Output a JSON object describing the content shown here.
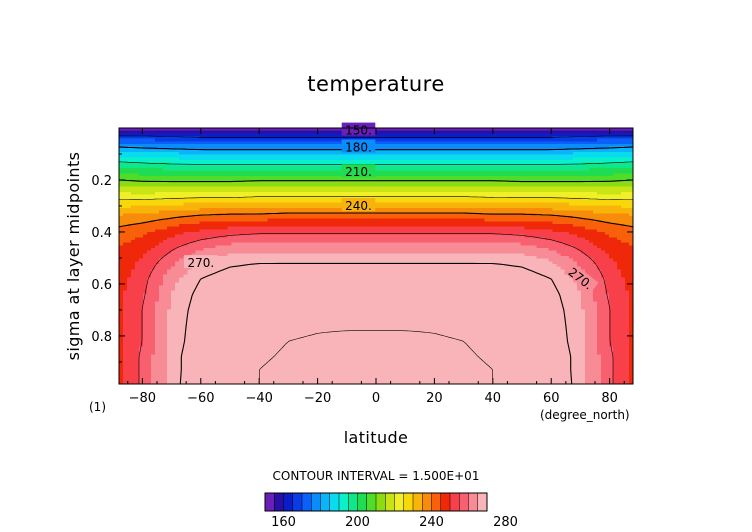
{
  "chart_data": {
    "type": "heatmap",
    "title": "temperature",
    "xlabel": "latitude",
    "ylabel": "sigma at layer midpoints",
    "x_units": "(degree_north)",
    "panel_label": "(1)",
    "xlim": [
      -88,
      88
    ],
    "ylim": [
      0,
      0.985
    ],
    "y_reversed": true,
    "x_ticks": [
      -80,
      -60,
      -40,
      -20,
      0,
      20,
      40,
      60,
      80
    ],
    "x_tick_labels": [
      "−80",
      "−60",
      "−40",
      "−20",
      "0",
      "20",
      "40",
      "60",
      "80"
    ],
    "y_ticks": [
      0.2,
      0.4,
      0.6,
      0.8
    ],
    "y_tick_labels": [
      "0.2",
      "0.4",
      "0.6",
      "0.8"
    ],
    "contour_interval_text": "CONTOUR INTERVAL = 1.500E+01",
    "contour_labels": [
      "150.",
      "180.",
      "210.",
      "240.",
      "270.",
      "270."
    ],
    "colorbar": {
      "min": 150,
      "max": 290,
      "step": 5,
      "tick_values": [
        160,
        200,
        240,
        280
      ],
      "tick_labels": [
        "160",
        "200",
        "240",
        "280"
      ],
      "colors": [
        "#6a1fb8",
        "#2a0fa6",
        "#0a1ec8",
        "#0a3ce6",
        "#0a60f8",
        "#0a8cfa",
        "#0ab4fa",
        "#0adcf0",
        "#0af0c8",
        "#10e68c",
        "#20dc50",
        "#50dc28",
        "#8cdc14",
        "#c8e414",
        "#f0f028",
        "#f8d80a",
        "#f8b40a",
        "#f88c0a",
        "#f8600a",
        "#f0280a",
        "#f8404a",
        "#f86070",
        "#f88c96",
        "#f8b4b8"
      ]
    },
    "sigma_levels": [
      0.0,
      0.015,
      0.03,
      0.06,
      0.1,
      0.16,
      0.22,
      0.28,
      0.34,
      0.4,
      0.46,
      0.52,
      0.58,
      0.64,
      0.7,
      0.76,
      0.82,
      0.88,
      0.93,
      0.985
    ],
    "latitudes": [
      -88,
      -80,
      -70,
      -60,
      -50,
      -40,
      -30,
      -20,
      -10,
      0,
      10,
      20,
      30,
      40,
      50,
      60,
      70,
      80,
      88
    ],
    "temperature": [
      [
        150,
        150,
        150,
        150,
        150,
        150,
        150,
        150,
        150,
        150,
        150,
        150,
        150,
        150,
        150,
        150,
        150,
        150,
        150
      ],
      [
        158,
        158,
        157,
        157,
        157,
        157,
        157,
        157,
        157,
        157,
        157,
        157,
        157,
        157,
        157,
        157,
        157,
        158,
        158
      ],
      [
        165,
        165,
        164,
        163,
        163,
        163,
        163,
        163,
        163,
        163,
        163,
        163,
        163,
        163,
        163,
        163,
        164,
        165,
        165
      ],
      [
        176,
        175,
        174,
        173,
        173,
        173,
        173,
        173,
        173,
        173,
        173,
        173,
        173,
        173,
        173,
        173,
        174,
        175,
        176
      ],
      [
        188,
        187,
        186,
        185,
        185,
        185,
        185,
        185,
        185,
        185,
        185,
        185,
        185,
        185,
        185,
        185,
        186,
        187,
        188
      ],
      [
        202,
        201,
        200,
        200,
        200,
        200,
        200,
        200,
        200,
        200,
        200,
        200,
        200,
        200,
        200,
        200,
        200,
        201,
        202
      ],
      [
        214,
        213,
        213,
        213,
        213,
        214,
        214,
        214,
        214,
        214,
        214,
        214,
        214,
        214,
        213,
        213,
        213,
        213,
        214
      ],
      [
        226,
        226,
        227,
        228,
        228,
        229,
        229,
        229,
        229,
        229,
        229,
        229,
        229,
        228,
        228,
        228,
        227,
        226,
        226
      ],
      [
        236,
        237,
        239,
        241,
        242,
        242,
        243,
        243,
        243,
        243,
        243,
        243,
        243,
        242,
        242,
        241,
        239,
        237,
        236
      ],
      [
        242,
        244,
        248,
        251,
        253,
        254,
        254,
        254,
        254,
        254,
        254,
        254,
        254,
        254,
        253,
        251,
        248,
        244,
        242
      ],
      [
        245,
        248,
        254,
        259,
        262,
        263,
        263,
        263,
        263,
        263,
        263,
        263,
        263,
        263,
        262,
        259,
        254,
        248,
        245
      ],
      [
        247,
        251,
        259,
        266,
        269,
        270,
        270,
        270,
        270,
        270,
        270,
        270,
        270,
        270,
        269,
        266,
        259,
        251,
        247
      ],
      [
        248,
        253,
        263,
        270,
        273,
        274,
        275,
        275,
        275,
        275,
        275,
        275,
        275,
        274,
        273,
        270,
        263,
        253,
        248
      ],
      [
        249,
        254,
        265,
        272,
        276,
        278,
        279,
        279,
        279,
        279,
        279,
        279,
        279,
        278,
        276,
        272,
        265,
        254,
        249
      ],
      [
        249,
        255,
        266,
        273,
        278,
        280,
        281,
        282,
        282,
        282,
        282,
        282,
        281,
        280,
        278,
        273,
        266,
        255,
        249
      ],
      [
        249,
        255,
        266,
        274,
        279,
        282,
        283,
        284,
        284,
        284,
        284,
        284,
        283,
        282,
        279,
        274,
        266,
        255,
        249
      ],
      [
        249,
        255,
        266,
        275,
        280,
        283,
        285,
        286,
        287,
        287,
        287,
        286,
        285,
        283,
        280,
        275,
        266,
        255,
        249
      ],
      [
        249,
        256,
        267,
        276,
        281,
        284,
        286,
        288,
        289,
        289,
        289,
        288,
        286,
        284,
        281,
        276,
        267,
        256,
        249
      ],
      [
        249,
        256,
        267,
        276,
        282,
        285,
        287,
        289,
        290,
        291,
        290,
        289,
        287,
        285,
        282,
        276,
        267,
        256,
        249
      ],
      [
        249,
        256,
        267,
        277,
        282,
        285,
        288,
        290,
        291,
        291,
        291,
        290,
        288,
        285,
        282,
        277,
        267,
        256,
        249
      ]
    ]
  }
}
